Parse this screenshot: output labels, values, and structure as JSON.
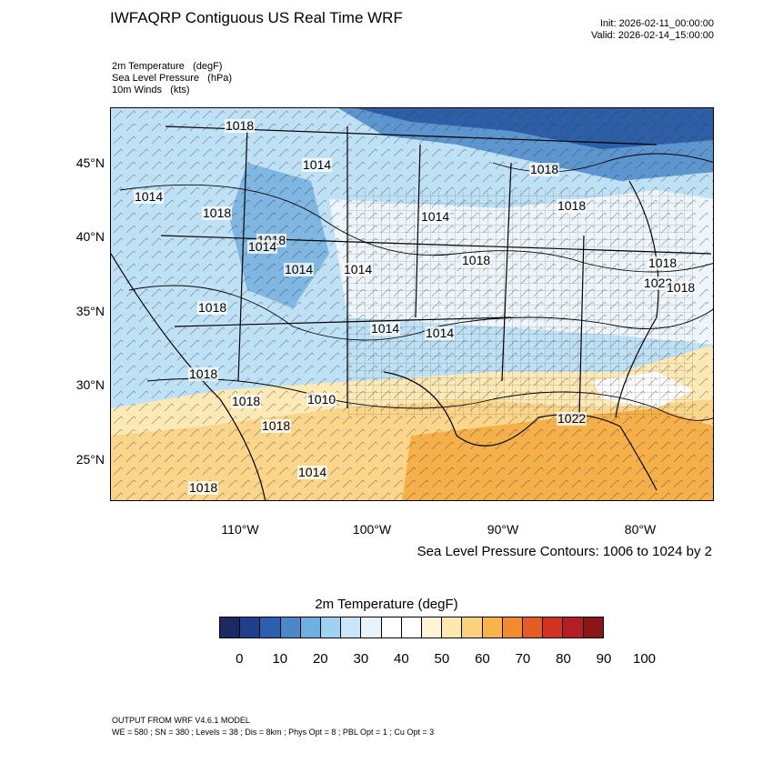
{
  "title": "IWFAQRP Contiguous US Real Time WRF",
  "init": "Init: 2026-02-11_00:00:00",
  "valid": "Valid: 2026-02-14_15:00:00",
  "fields": [
    "2m Temperature   (degF)",
    "Sea Level Pressure   (hPa)",
    "10m Winds   (kts)"
  ],
  "lat_labels": [
    "45°N",
    "40°N",
    "35°N",
    "30°N",
    "25°N"
  ],
  "lon_labels": [
    "110°W",
    "100°W",
    "90°W",
    "80°W"
  ],
  "contour_note": "Sea Level Pressure Contours: 1006 to 1024 by 2",
  "isobar_labels": [
    "1018",
    "1014",
    "1014",
    "1018",
    "1014",
    "1018",
    "1018",
    "1018",
    "1014",
    "1014",
    "1018",
    "1018",
    "1014",
    "1018",
    "1022",
    "1018",
    "1014",
    "1014",
    "1018",
    "1010",
    "1018",
    "1018",
    "1022",
    "1014",
    "1018"
  ],
  "colorbar": {
    "title": "2m Temperature  (degF)",
    "colors": [
      "#1a2b63",
      "#203f8c",
      "#2b60b0",
      "#4a88c9",
      "#6fb0e0",
      "#9fd2f2",
      "#c8e6f7",
      "#e6f3fb",
      "#ffffff",
      "#ffffff",
      "#fff5d6",
      "#fde8ad",
      "#fbd17c",
      "#f8b34a",
      "#f28b2e",
      "#e65c25",
      "#d33223",
      "#b61d22",
      "#8c1518"
    ],
    "tick_labels": [
      "0",
      "10",
      "20",
      "30",
      "40",
      "50",
      "60",
      "70",
      "80",
      "90",
      "100"
    ]
  },
  "footer": {
    "model": "OUTPUT FROM WRF V4.6.1 MODEL",
    "config": "WE = 580 ; SN = 380 ; Levels = 38 ; Dis = 8km ; Phys Opt = 8 ; PBL Opt = 1 ; Cu Opt = 3"
  }
}
